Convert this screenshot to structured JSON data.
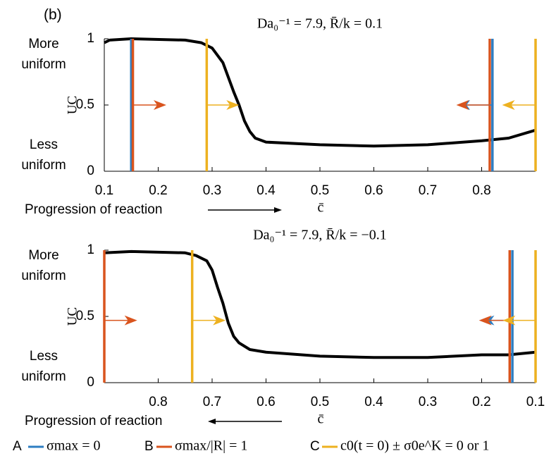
{
  "panel_label": "(b)",
  "legend": [
    {
      "letter": "A",
      "name": "σmax = 0",
      "color": "#2e7ec2"
    },
    {
      "letter": "B",
      "name": "σmax/|R| = 1",
      "color": "#d9541e"
    },
    {
      "letter": "C",
      "name": "c0(t = 0) ± σ0e^K = 0 or 1",
      "color": "#edb120"
    }
  ],
  "chart_data": [
    {
      "type": "line",
      "title": "Da₀⁻¹ = 7.9, R̄/k = 0.1",
      "xlabel": "c̄",
      "ylabel": "UC",
      "upper_label": [
        "More",
        "uniform"
      ],
      "lower_label": [
        "Less",
        "uniform"
      ],
      "progression": "Progression of reaction",
      "x": [
        0.1,
        0.11,
        0.15,
        0.25,
        0.28,
        0.3,
        0.32,
        0.34,
        0.35,
        0.36,
        0.37,
        0.38,
        0.4,
        0.5,
        0.6,
        0.7,
        0.8,
        0.85,
        0.9
      ],
      "series": [
        {
          "color": "#000000",
          "values": [
            0.97,
            0.99,
            1.0,
            0.99,
            0.97,
            0.93,
            0.82,
            0.6,
            0.5,
            0.38,
            0.3,
            0.25,
            0.22,
            0.2,
            0.19,
            0.2,
            0.23,
            0.25,
            0.31
          ]
        }
      ],
      "xlim": [
        0.1,
        0.9
      ],
      "ylim": [
        0,
        1
      ],
      "xticks": [
        0.1,
        0.2,
        0.3,
        0.4,
        0.5,
        0.6,
        0.7,
        0.8
      ],
      "yticks": [
        0,
        0.5,
        1
      ],
      "vlines": [
        {
          "legend": 0,
          "x": 0.15
        },
        {
          "legend": 1,
          "x": 0.153
        },
        {
          "legend": 2,
          "x": 0.29
        },
        {
          "legend": 1,
          "x": 0.815
        },
        {
          "legend": 0,
          "x": 0.82
        },
        {
          "legend": 2,
          "x": 0.9
        }
      ],
      "arrows": [
        {
          "legend": 1,
          "from": 0.153,
          "to": 0.215,
          "y": 0.5
        },
        {
          "legend": 2,
          "from": 0.29,
          "to": 0.35,
          "y": 0.5
        },
        {
          "legend": 0,
          "from": 0.82,
          "to": 0.755,
          "y": 0.5
        },
        {
          "legend": 1,
          "from": 0.815,
          "to": 0.753,
          "y": 0.5
        },
        {
          "legend": 2,
          "from": 0.9,
          "to": 0.838,
          "y": 0.5
        }
      ]
    },
    {
      "type": "line",
      "title": "Da₀⁻¹ = 7.9, R̄/k = −0.1",
      "xlabel": "c̄",
      "ylabel": "UC",
      "upper_label": [
        "More",
        "uniform"
      ],
      "lower_label": [
        "Less",
        "uniform"
      ],
      "progression": "Progression of reaction",
      "x": [
        0.9,
        0.85,
        0.75,
        0.73,
        0.71,
        0.7,
        0.69,
        0.68,
        0.67,
        0.66,
        0.65,
        0.63,
        0.6,
        0.5,
        0.4,
        0.3,
        0.2,
        0.15,
        0.1
      ],
      "series": [
        {
          "color": "#000000",
          "values": [
            0.98,
            0.99,
            0.98,
            0.96,
            0.92,
            0.85,
            0.72,
            0.6,
            0.45,
            0.35,
            0.3,
            0.25,
            0.23,
            0.2,
            0.19,
            0.19,
            0.21,
            0.21,
            0.23
          ]
        }
      ],
      "xlim": [
        0.9,
        0.1
      ],
      "ylim": [
        0,
        1
      ],
      "xticks": [
        0.8,
        0.7,
        0.6,
        0.5,
        0.4,
        0.3,
        0.2,
        0.1
      ],
      "yticks": [
        0,
        0.5,
        1
      ],
      "vlines": [
        {
          "legend": 1,
          "x": 0.9
        },
        {
          "legend": 2,
          "x": 0.737
        },
        {
          "legend": 1,
          "x": 0.148
        },
        {
          "legend": 0,
          "x": 0.143
        },
        {
          "legend": 2,
          "x": 0.1
        }
      ],
      "arrows": [
        {
          "legend": 1,
          "from": 0.9,
          "to": 0.839,
          "y": 0.47
        },
        {
          "legend": 2,
          "from": 0.737,
          "to": 0.675,
          "y": 0.47
        },
        {
          "legend": 0,
          "from": 0.143,
          "to": 0.2,
          "y": 0.47
        },
        {
          "legend": 1,
          "from": 0.148,
          "to": 0.205,
          "y": 0.47
        },
        {
          "legend": 2,
          "from": 0.1,
          "to": 0.161,
          "y": 0.47
        }
      ]
    }
  ]
}
